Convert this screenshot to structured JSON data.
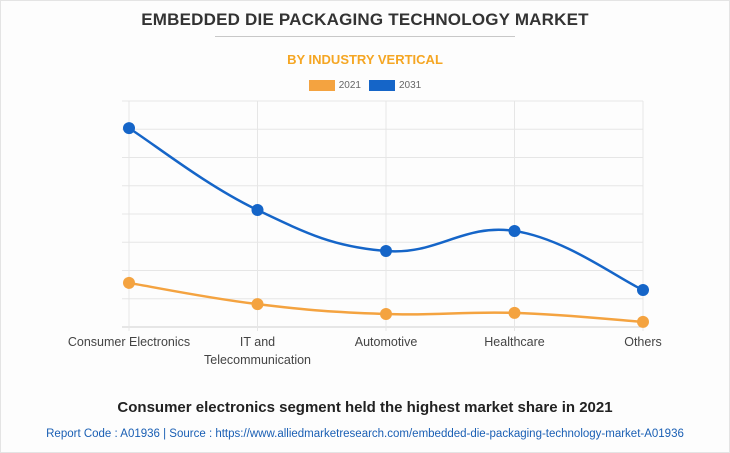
{
  "chart_data": {
    "type": "line",
    "title": "EMBEDDED DIE PACKAGING TECHNOLOGY MARKET",
    "subtitle": "BY INDUSTRY VERTICAL",
    "xlabel": "",
    "ylabel": "",
    "categories": [
      "Consumer Electronics",
      "IT and Telecommunication",
      "Automotive",
      "Healthcare",
      "Others"
    ],
    "category_lines": [
      [
        "Consumer Electronics"
      ],
      [
        "IT and",
        "Telecommunication"
      ],
      [
        "Automotive"
      ],
      [
        "Healthcare"
      ],
      [
        "Others"
      ]
    ],
    "ylim": [
      0,
      8
    ],
    "y_ticks_count": 8,
    "grid": true,
    "legend_position": "top-center",
    "series": [
      {
        "name": "2021",
        "color": "#f4a340",
        "values": [
          1.56,
          0.81,
          0.46,
          0.5,
          0.18
        ]
      },
      {
        "name": "2031",
        "color": "#1565c8",
        "values": [
          7.04,
          4.14,
          2.69,
          3.4,
          1.31
        ]
      }
    ]
  },
  "footer": {
    "caption": "Consumer electronics segment held the highest market share in 2021",
    "source": "Report Code : A01936  |  Source : https://www.alliedmarketresearch.com/embedded-die-packaging-technology-market-A01936"
  }
}
